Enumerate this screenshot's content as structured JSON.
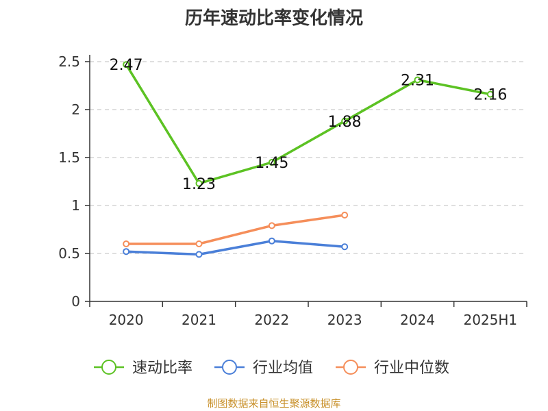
{
  "title": "历年速动比率变化情况",
  "source": "制图数据来自恒生聚源数据库",
  "chart_data": {
    "type": "line",
    "title": "历年速动比率变化情况",
    "categories": [
      "2020",
      "2021",
      "2022",
      "2023",
      "2024",
      "2025H1"
    ],
    "ylim": [
      0,
      2.5
    ],
    "yticks": [
      "0",
      "0.5",
      "1",
      "1.5",
      "2",
      "2.5"
    ],
    "grid": true,
    "legend_position": "bottom",
    "series": [
      {
        "name": "速动比率",
        "color": "#5cc223",
        "values": [
          2.47,
          1.23,
          1.45,
          1.88,
          2.31,
          2.16
        ],
        "labels": [
          "2.47",
          "1.23",
          "1.45",
          "1.88",
          "2.31",
          "2.16"
        ]
      },
      {
        "name": "行业均值",
        "color": "#4a7fd8",
        "values": [
          0.52,
          0.49,
          0.63,
          0.57,
          null,
          null
        ]
      },
      {
        "name": "行业中位数",
        "color": "#f58e5a",
        "values": [
          0.6,
          0.6,
          0.79,
          0.9,
          null,
          null
        ]
      }
    ]
  }
}
